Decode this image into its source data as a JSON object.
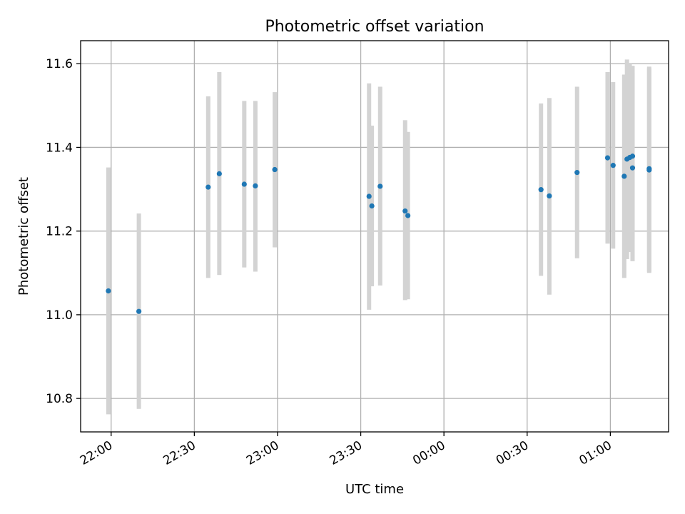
{
  "chart_data": {
    "type": "scatter",
    "title": "Photometric offset variation",
    "xlabel": "UTC time",
    "ylabel": "Photometric offset",
    "x_axis": {
      "type": "time",
      "range": [
        "21:49",
        "01:21"
      ],
      "ticks": [
        "22:00",
        "22:30",
        "23:00",
        "23:30",
        "00:00",
        "00:30",
        "01:00"
      ]
    },
    "y_axis": {
      "range": [
        10.72,
        11.655
      ],
      "ticks": [
        "10.8",
        "11.0",
        "11.2",
        "11.4",
        "11.6"
      ]
    },
    "grid": true,
    "colors": {
      "marker": "#1f77b4",
      "errorbar": "#d3d3d3",
      "grid": "#b0b0b0"
    },
    "series": [
      {
        "marker": "circle",
        "errorbar": true,
        "points": [
          {
            "time": "21:59",
            "y": 11.057,
            "ylo": 10.762,
            "yhi": 11.352
          },
          {
            "time": "22:10",
            "y": 11.008,
            "ylo": 10.775,
            "yhi": 11.242
          },
          {
            "time": "22:35",
            "y": 11.305,
            "ylo": 11.088,
            "yhi": 11.522
          },
          {
            "time": "22:39",
            "y": 11.337,
            "ylo": 11.095,
            "yhi": 11.58
          },
          {
            "time": "22:48",
            "y": 11.312,
            "ylo": 11.113,
            "yhi": 11.511
          },
          {
            "time": "22:52",
            "y": 11.308,
            "ylo": 11.103,
            "yhi": 11.511
          },
          {
            "time": "22:59",
            "y": 11.347,
            "ylo": 11.161,
            "yhi": 11.532
          },
          {
            "time": "23:33",
            "y": 11.283,
            "ylo": 11.012,
            "yhi": 11.553
          },
          {
            "time": "23:34",
            "y": 11.26,
            "ylo": 11.068,
            "yhi": 11.452
          },
          {
            "time": "23:37",
            "y": 11.307,
            "ylo": 11.07,
            "yhi": 11.545
          },
          {
            "time": "23:46",
            "y": 11.248,
            "ylo": 11.035,
            "yhi": 11.465
          },
          {
            "time": "23:47",
            "y": 11.237,
            "ylo": 11.037,
            "yhi": 11.437
          },
          {
            "time": "00:35",
            "y": 11.299,
            "ylo": 11.093,
            "yhi": 11.505
          },
          {
            "time": "00:38",
            "y": 11.284,
            "ylo": 11.048,
            "yhi": 11.518
          },
          {
            "time": "00:48",
            "y": 11.34,
            "ylo": 11.135,
            "yhi": 11.545
          },
          {
            "time": "00:59",
            "y": 11.375,
            "ylo": 11.17,
            "yhi": 11.58
          },
          {
            "time": "01:01",
            "y": 11.357,
            "ylo": 11.158,
            "yhi": 11.556
          },
          {
            "time": "01:05",
            "y": 11.331,
            "ylo": 11.088,
            "yhi": 11.574
          },
          {
            "time": "01:06",
            "y": 11.372,
            "ylo": 11.133,
            "yhi": 11.61
          },
          {
            "time": "01:07",
            "y": 11.376,
            "ylo": 11.15,
            "yhi": 11.602
          },
          {
            "time": "01:08",
            "y": 11.351,
            "ylo": 11.128,
            "yhi": 11.595
          },
          {
            "time": "01:08",
            "y": 11.379,
            "ylo": 11.18,
            "yhi": 11.578
          },
          {
            "time": "01:14",
            "y": 11.349,
            "ylo": 11.1,
            "yhi": 11.593
          },
          {
            "time": "01:14",
            "y": 11.346,
            "ylo": 11.103,
            "yhi": 11.589
          }
        ]
      }
    ]
  }
}
